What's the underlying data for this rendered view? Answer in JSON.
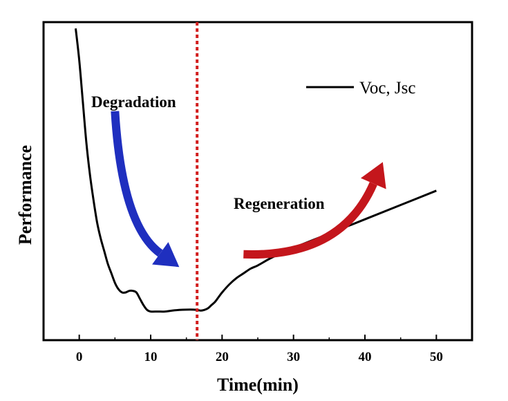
{
  "chart_data": {
    "type": "line",
    "xlabel": "Time(min)",
    "ylabel": "Performance",
    "xlim": [
      -5,
      55
    ],
    "xticks": [
      0,
      10,
      20,
      30,
      40,
      50
    ],
    "yticks": [],
    "ylim": [
      0,
      100
    ],
    "grid": false,
    "legend": {
      "position": "top-right",
      "entries": [
        "Voc, Jsc"
      ]
    },
    "series": [
      {
        "name": "Voc, Jsc",
        "color": "#000000",
        "x": [
          -0.5,
          0,
          0.5,
          1,
          1.5,
          2,
          2.5,
          3,
          3.5,
          4,
          4.5,
          5,
          5.5,
          6,
          6.5,
          7,
          7.5,
          8,
          8.5,
          9,
          9.5,
          10,
          11,
          12,
          13,
          14,
          15,
          16,
          16.5,
          17,
          17.5,
          18,
          18.5,
          19,
          19.5,
          20,
          21,
          22,
          23,
          24,
          25,
          27,
          30,
          35,
          40,
          45,
          50
        ],
        "y": [
          98,
          88,
          75,
          62,
          52,
          44,
          37,
          32,
          28,
          24,
          21,
          18,
          16,
          15,
          15,
          15.5,
          15.5,
          15,
          13,
          11,
          9.5,
          9,
          9,
          9,
          9.3,
          9.5,
          9.6,
          9.6,
          9.5,
          9.3,
          9.5,
          10,
          11,
          12,
          13.5,
          15,
          17.5,
          19.5,
          21,
          22.5,
          23.5,
          26,
          29,
          33.5,
          38,
          42.5,
          47
        ]
      }
    ],
    "annotations": [
      {
        "text": "Degradation",
        "color": "#000000"
      },
      {
        "text": "Regeneration",
        "color": "#000000"
      }
    ],
    "arrows": [
      {
        "name": "degradation-arrow",
        "color": "#1f2fbf",
        "from": [
          5,
          72
        ],
        "to": [
          14,
          23
        ]
      },
      {
        "name": "regeneration-arrow",
        "color": "#c4161c",
        "from": [
          23,
          27
        ],
        "to": [
          42.5,
          56
        ]
      }
    ],
    "vertical_line": {
      "x": 16.5,
      "color": "#d21f1f",
      "style": "dotted"
    }
  }
}
